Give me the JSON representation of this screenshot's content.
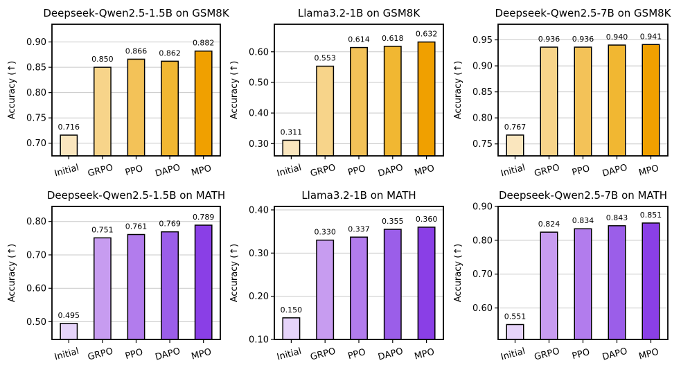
{
  "chart_data": [
    {
      "type": "bar",
      "title": "Deepseek-Qwen2.5-1.5B on GSM8K",
      "ylabel": "Accuracy (↑)",
      "categories": [
        "Initial",
        "GRPO",
        "PPO",
        "DAPO",
        "MPO"
      ],
      "values": [
        0.716,
        0.85,
        0.866,
        0.862,
        0.882
      ],
      "value_labels": [
        "0.716",
        "0.850",
        "0.866",
        "0.862",
        "0.882"
      ],
      "ylim": [
        0.675,
        0.935
      ],
      "yticks": [
        0.7,
        0.75,
        0.8,
        0.85,
        0.9
      ],
      "ytick_labels": [
        "0.70",
        "0.75",
        "0.80",
        "0.85",
        "0.90"
      ],
      "colors": [
        "#fae6be",
        "#f7d48a",
        "#f3c258",
        "#f1b732",
        "#f0a000"
      ],
      "grid": true
    },
    {
      "type": "bar",
      "title": "Llama3.2-1B on GSM8K",
      "ylabel": "Accuracy (↑)",
      "categories": [
        "Initial",
        "GRPO",
        "PPO",
        "DAPO",
        "MPO"
      ],
      "values": [
        0.311,
        0.553,
        0.614,
        0.618,
        0.632
      ],
      "value_labels": [
        "0.311",
        "0.553",
        "0.614",
        "0.618",
        "0.632"
      ],
      "ylim": [
        0.26,
        0.69
      ],
      "yticks": [
        0.3,
        0.4,
        0.5,
        0.6
      ],
      "ytick_labels": [
        "0.30",
        "0.40",
        "0.50",
        "0.60"
      ],
      "colors": [
        "#fae6be",
        "#f7d48a",
        "#f3c258",
        "#f1b732",
        "#f0a000"
      ],
      "grid": true
    },
    {
      "type": "bar",
      "title": "Deepseek-Qwen2.5-7B on GSM8K",
      "ylabel": "Accuracy (↑)",
      "categories": [
        "Initial",
        "GRPO",
        "PPO",
        "DAPO",
        "MPO"
      ],
      "values": [
        0.767,
        0.936,
        0.936,
        0.94,
        0.941
      ],
      "value_labels": [
        "0.767",
        "0.936",
        "0.936",
        "0.940",
        "0.941"
      ],
      "ylim": [
        0.727,
        0.98
      ],
      "yticks": [
        0.75,
        0.8,
        0.85,
        0.9,
        0.95
      ],
      "ytick_labels": [
        "0.75",
        "0.80",
        "0.85",
        "0.90",
        "0.95"
      ],
      "colors": [
        "#fae6be",
        "#f7d48a",
        "#f3c258",
        "#f1b732",
        "#f0a000"
      ],
      "grid": true
    },
    {
      "type": "bar",
      "title": "Deepseek-Qwen2.5-1.5B on MATH",
      "ylabel": "Accuracy (↑)",
      "categories": [
        "Initial",
        "GRPO",
        "PPO",
        "DAPO",
        "MPO"
      ],
      "values": [
        0.495,
        0.751,
        0.761,
        0.769,
        0.789
      ],
      "value_labels": [
        "0.495",
        "0.751",
        "0.761",
        "0.769",
        "0.789"
      ],
      "ylim": [
        0.447,
        0.845
      ],
      "yticks": [
        0.5,
        0.6,
        0.7,
        0.8
      ],
      "ytick_labels": [
        "0.50",
        "0.60",
        "0.70",
        "0.80"
      ],
      "colors": [
        "#e6d4fa",
        "#c79cf0",
        "#b27ced",
        "#9b5ee9",
        "#8a3fe6"
      ],
      "grid": true
    },
    {
      "type": "bar",
      "title": "Llama3.2-1B on MATH",
      "ylabel": "Accuracy (↑)",
      "categories": [
        "Initial",
        "GRPO",
        "PPO",
        "DAPO",
        "MPO"
      ],
      "values": [
        0.15,
        0.33,
        0.337,
        0.355,
        0.36
      ],
      "value_labels": [
        "0.150",
        "0.330",
        "0.337",
        "0.355",
        "0.360"
      ],
      "ylim": [
        0.1,
        0.408
      ],
      "yticks": [
        0.1,
        0.2,
        0.3,
        0.4
      ],
      "ytick_labels": [
        "0.10",
        "0.20",
        "0.30",
        "0.40"
      ],
      "colors": [
        "#e6d4fa",
        "#c79cf0",
        "#b27ced",
        "#9b5ee9",
        "#8a3fe6"
      ],
      "grid": true
    },
    {
      "type": "bar",
      "title": "Deepseek-Qwen2.5-7B on MATH",
      "ylabel": "Accuracy (↑)",
      "categories": [
        "Initial",
        "GRPO",
        "PPO",
        "DAPO",
        "MPO"
      ],
      "values": [
        0.551,
        0.824,
        0.834,
        0.843,
        0.851
      ],
      "value_labels": [
        "0.551",
        "0.824",
        "0.834",
        "0.843",
        "0.851"
      ],
      "ylim": [
        0.507,
        0.9
      ],
      "yticks": [
        0.6,
        0.7,
        0.8,
        0.9
      ],
      "ytick_labels": [
        "0.60",
        "0.70",
        "0.80",
        "0.90"
      ],
      "colors": [
        "#e6d4fa",
        "#c79cf0",
        "#b27ced",
        "#9b5ee9",
        "#8a3fe6"
      ],
      "grid": true
    }
  ]
}
